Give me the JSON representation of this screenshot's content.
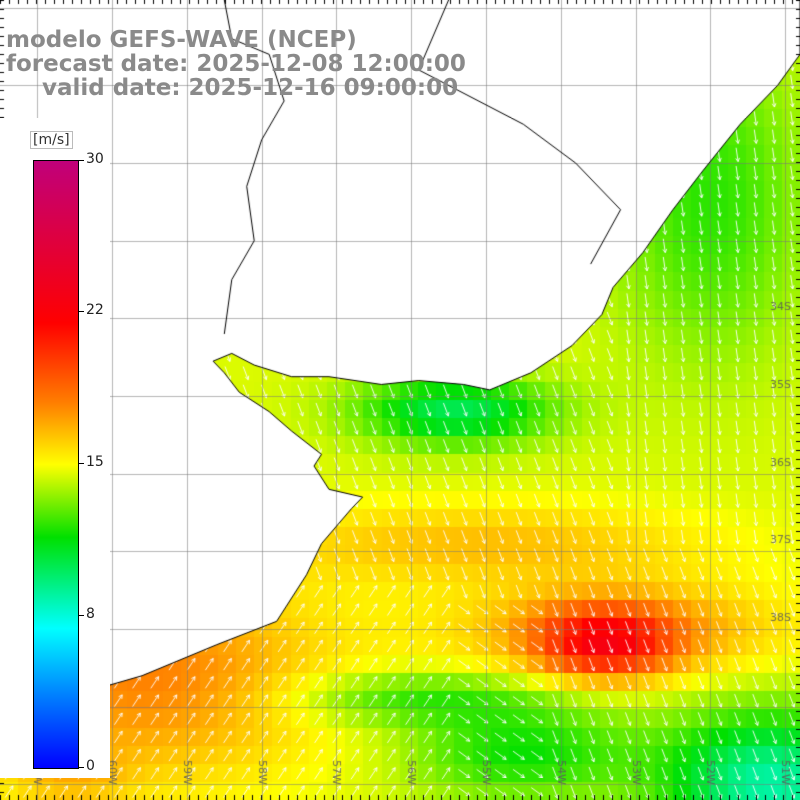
{
  "title": {
    "line1": "modelo GEFS-WAVE (NCEP)",
    "line2": "forecast date: 2025-12-08 12:00:00",
    "line3": "valid date: 2025-12-16 09:00:00"
  },
  "colorbar": {
    "unit": "[m/s]",
    "ticks": [
      "30",
      "22",
      "15",
      "8",
      "0"
    ],
    "tick_values": [
      30,
      22,
      15,
      8,
      0
    ],
    "min": 0,
    "max": 30,
    "colors": [
      "#0000ff",
      "#0080ff",
      "#00ffff",
      "#00e000",
      "#ffff00",
      "#ff8000",
      "#ff0000",
      "#c0007a"
    ]
  },
  "map": {
    "lat_labels": [
      "34S",
      "35S",
      "36S",
      "37S",
      "38S"
    ],
    "lon_labels": [
      "61W",
      "60W",
      "59W",
      "58W",
      "57W",
      "56W",
      "55W",
      "54W",
      "53W",
      "52W",
      "51W"
    ],
    "extent": {
      "lon_min": -61.5,
      "lon_max": -50.8,
      "lat_min": -40.2,
      "lat_max": -29.9
    }
  },
  "icons": [
    "wind-arrow-icon"
  ]
}
